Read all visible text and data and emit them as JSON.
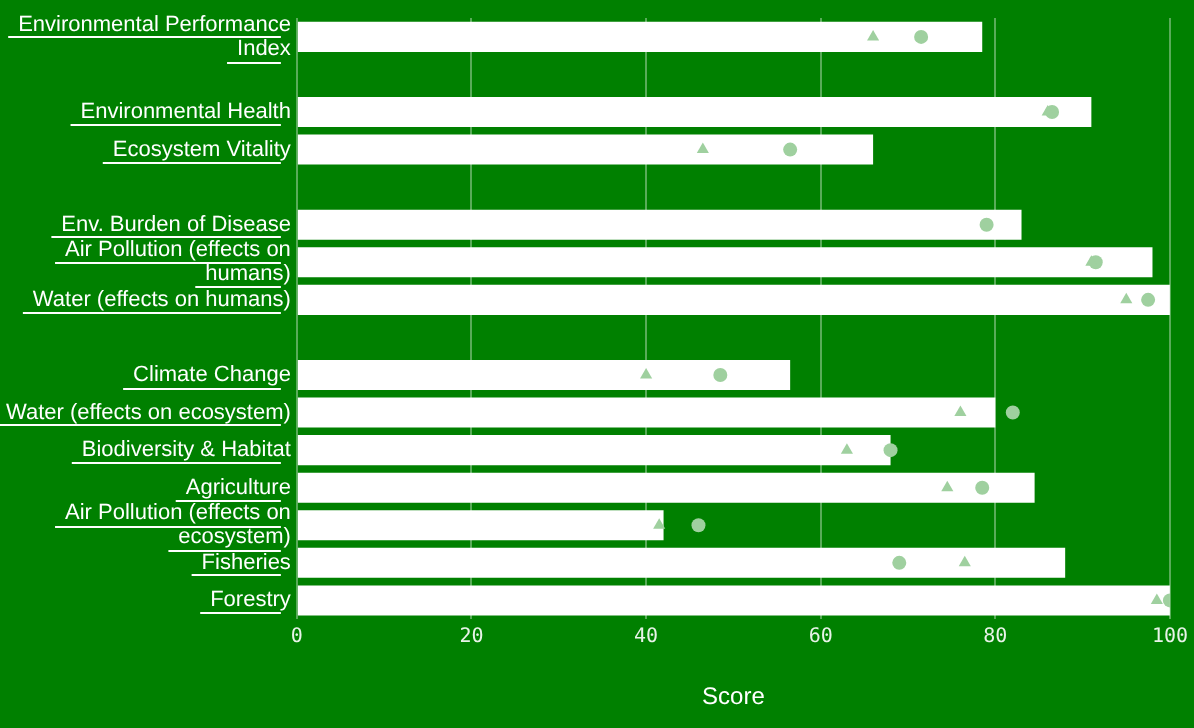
{
  "chart_data": {
    "type": "bar",
    "orientation": "horizontal",
    "xlabel": "Score",
    "categories": [
      "Environmental Performance Index",
      null,
      "Environmental Health",
      "Ecosystem Vitality",
      null,
      "Env. Burden of Disease",
      "Air Pollution (effects on humans)",
      "Water (effects on humans)",
      null,
      "Climate Change",
      "Water (effects on ecosystem)",
      "Biodiversity & Habitat",
      "Agriculture",
      "Air Pollution (effects on ecosystem)",
      "Fisheries",
      "Forestry"
    ],
    "series": [
      {
        "color": "#ffffff",
        "values": [
          78.5,
          null,
          91,
          66,
          null,
          83,
          98,
          100,
          null,
          56.5,
          80,
          68,
          84.5,
          42,
          88,
          100
        ]
      },
      {
        "type": "scatter",
        "marker": "triangle",
        "color": "#9fd09f",
        "values": [
          66,
          null,
          86,
          46.5,
          null,
          null,
          91,
          95,
          null,
          40,
          76,
          63,
          74.5,
          41.5,
          76.5,
          98.5
        ]
      },
      {
        "type": "scatter",
        "marker": "circle",
        "color": "#9fd09f",
        "values": [
          71.5,
          null,
          86.5,
          56.5,
          null,
          79,
          91.5,
          97.5,
          null,
          48.5,
          82,
          68,
          78.5,
          46,
          69,
          100
        ]
      }
    ],
    "xlim": [
      0,
      100
    ],
    "xticks": [
      0,
      20,
      40,
      60,
      80,
      100
    ],
    "grid": "x",
    "legend": false
  }
}
